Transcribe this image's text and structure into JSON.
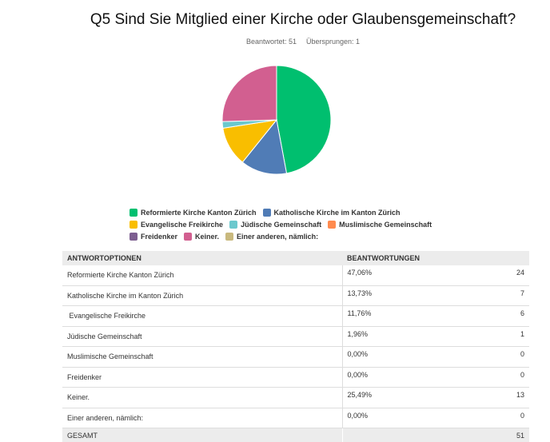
{
  "title": "Q5 Sind Sie Mitglied einer Kirche oder Glaubensgemeinschaft?",
  "answered": "Beantwortet: 51",
  "skipped": "Übersprungen: 1",
  "table": {
    "col1": "ANTWORTOPTIONEN",
    "col2": "BEANTWORTUNGEN",
    "total_label": "GESAMT",
    "total": "51"
  },
  "chart_data": {
    "type": "pie",
    "title": "Q5 Sind Sie Mitglied einer Kirche oder Glaubensgemeinschaft?",
    "legend": "bottom",
    "categories": [
      "Reformierte Kirche Kanton Zürich",
      "Katholische Kirche im Kanton Zürich",
      "Evangelische Freikirche",
      "Jüdische Gemeinschaft",
      "Muslimische Gemeinschaft",
      "Freidenker",
      "Keiner.",
      "Einer anderen, nämlich:"
    ],
    "labels": [
      "Reformierte Kirche Kanton Zürich",
      "Katholische Kirche im Kanton Zürich",
      " Evangelische Freikirche",
      "Jüdische Gemeinschaft",
      "Muslimische Gemeinschaft",
      "Freidenker",
      "Keiner.",
      "Einer anderen, nämlich:"
    ],
    "percent": [
      "47,06%",
      "13,73%",
      "11,76%",
      "1,96%",
      "0,00%",
      "0,00%",
      "25,49%",
      "0,00%"
    ],
    "counts": [
      24,
      7,
      6,
      1,
      0,
      0,
      13,
      0
    ],
    "colors": [
      "#00bf6f",
      "#507cb6",
      "#f9be00",
      "#6bc8cd",
      "#ff8b4f",
      "#7d5e90",
      "#d25f90",
      "#c9b97e"
    ]
  }
}
